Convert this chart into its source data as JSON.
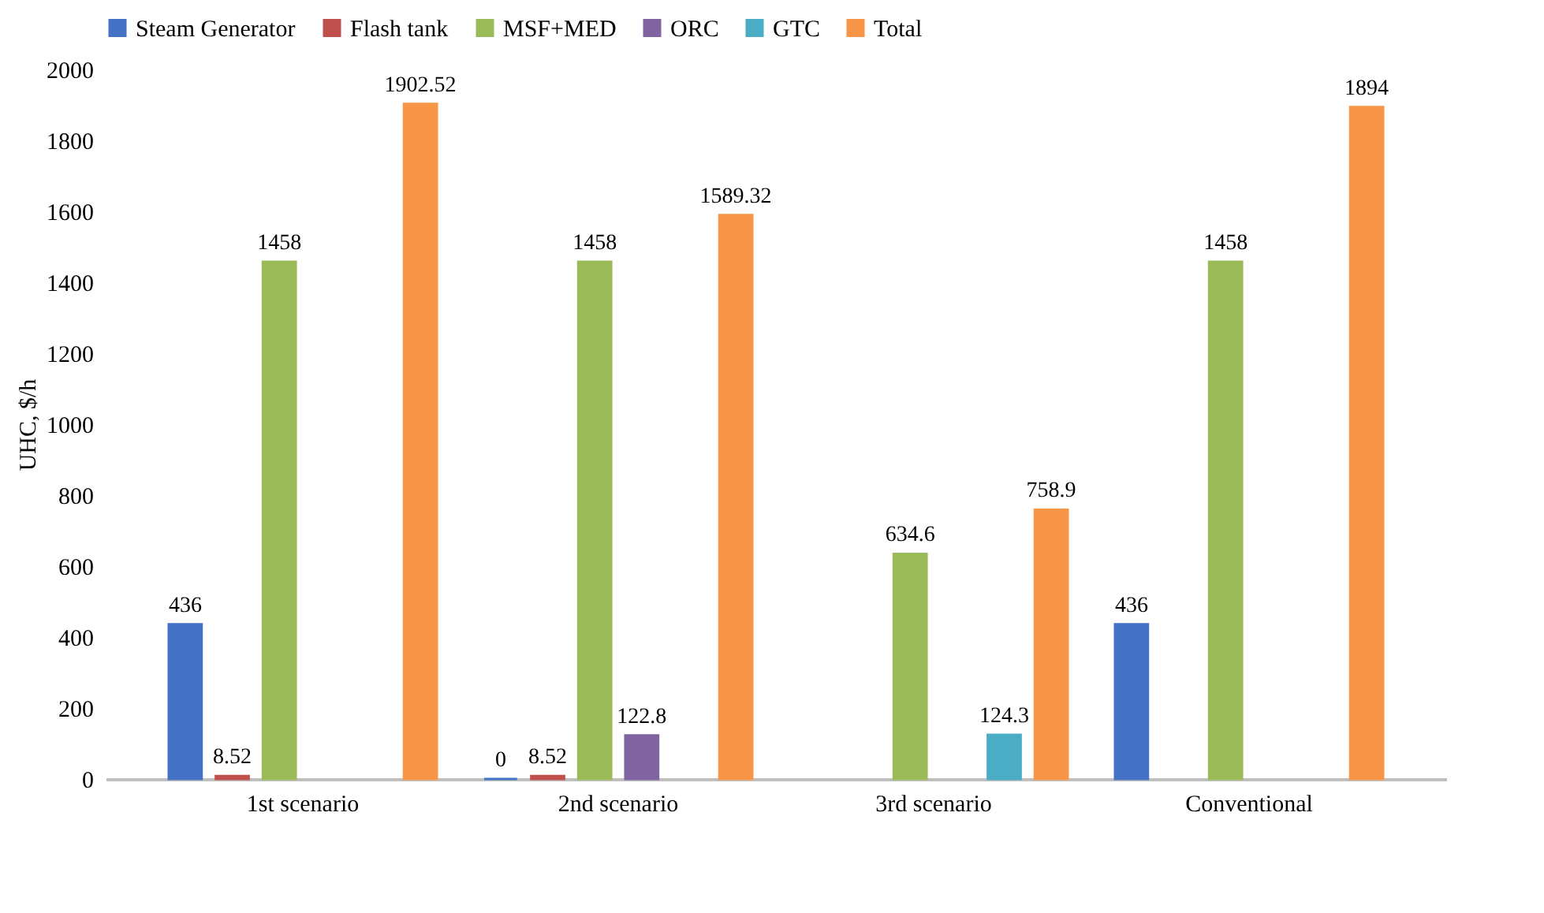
{
  "chart_data": {
    "type": "bar",
    "ylabel": "UHC, $/h",
    "categories": [
      "1st scenario",
      "2nd scenario",
      "3rd scenario",
      "Conventional"
    ],
    "series": [
      {
        "name": "Steam Generator",
        "color": "#4472c4",
        "values": [
          436,
          0,
          null,
          436
        ]
      },
      {
        "name": "Flash tank",
        "color": "#c0504d",
        "values": [
          8.52,
          8.52,
          null,
          null
        ]
      },
      {
        "name": "MSF+MED",
        "color": "#9bbb59",
        "values": [
          1458,
          1458,
          634.6,
          1458
        ]
      },
      {
        "name": "ORC",
        "color": "#8064a2",
        "values": [
          null,
          122.8,
          null,
          null
        ]
      },
      {
        "name": "GTC",
        "color": "#4bacc6",
        "values": [
          null,
          null,
          124.3,
          null
        ]
      },
      {
        "name": "Total",
        "color": "#f79646",
        "values": [
          1902.52,
          1589.32,
          758.9,
          1894
        ]
      }
    ],
    "ylim": [
      0,
      2000
    ],
    "yticks": [
      0,
      200,
      400,
      600,
      800,
      1000,
      1200,
      1400,
      1600,
      1800,
      2000
    ],
    "grid": false,
    "legend": "top",
    "data_labels": true
  }
}
